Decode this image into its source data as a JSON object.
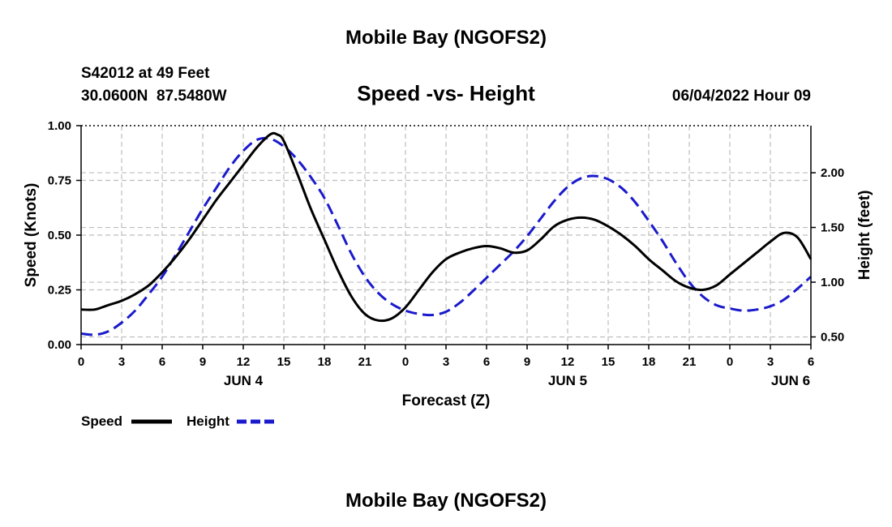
{
  "chart_data": {
    "type": "line",
    "title": "Mobile Bay (NGOFS2)",
    "subtitle": "Speed -vs- Height",
    "footer_title": "Mobile Bay (NGOFS2)",
    "station": "S42012 at 49 Feet",
    "coords": "30.0600N  87.5480W",
    "timestamp": "06/04/2022 Hour 09",
    "xlabel": "Forecast (Z)",
    "ylabel": "Speed (Knots)",
    "y2label": "Height (feet)",
    "xlim": [
      0,
      54
    ],
    "ylim": [
      0,
      1.0
    ],
    "y2lim": [
      0.43,
      2.43
    ],
    "grid": true,
    "legend_position": "bottom-left",
    "x_ticks": [
      {
        "x": 0,
        "label": "0"
      },
      {
        "x": 3,
        "label": "3"
      },
      {
        "x": 6,
        "label": "6"
      },
      {
        "x": 9,
        "label": "9"
      },
      {
        "x": 12,
        "label": "12"
      },
      {
        "x": 15,
        "label": "15"
      },
      {
        "x": 18,
        "label": "18"
      },
      {
        "x": 21,
        "label": "21"
      },
      {
        "x": 24,
        "label": "0"
      },
      {
        "x": 27,
        "label": "3"
      },
      {
        "x": 30,
        "label": "6"
      },
      {
        "x": 33,
        "label": "9"
      },
      {
        "x": 36,
        "label": "12"
      },
      {
        "x": 39,
        "label": "15"
      },
      {
        "x": 42,
        "label": "18"
      },
      {
        "x": 45,
        "label": "21"
      },
      {
        "x": 48,
        "label": "0"
      },
      {
        "x": 51,
        "label": "3"
      },
      {
        "x": 54,
        "label": "6"
      }
    ],
    "day_labels": [
      {
        "x": 12,
        "label": "JUN 4"
      },
      {
        "x": 36,
        "label": "JUN 5"
      },
      {
        "x": 52.5,
        "label": "JUN 6"
      }
    ],
    "y_ticks": [
      {
        "v": 0.0,
        "label": "0.00"
      },
      {
        "v": 0.25,
        "label": "0.25"
      },
      {
        "v": 0.5,
        "label": "0.50"
      },
      {
        "v": 0.75,
        "label": "0.75"
      },
      {
        "v": 1.0,
        "label": "1.00"
      }
    ],
    "y2_ticks": [
      {
        "v": 0.5,
        "label": "0.50"
      },
      {
        "v": 1.0,
        "label": "1.00"
      },
      {
        "v": 1.5,
        "label": "1.50"
      },
      {
        "v": 2.0,
        "label": "2.00"
      }
    ],
    "series": [
      {
        "name": "Speed",
        "axis": "left",
        "color": "#000000",
        "dash": "solid",
        "x": [
          0,
          1,
          2,
          3,
          4,
          5,
          6,
          7,
          8,
          9,
          10,
          11,
          12,
          13,
          14,
          14.5,
          15,
          16,
          17,
          18,
          19,
          20,
          21,
          22,
          23,
          24,
          25,
          26,
          27,
          28,
          29,
          30,
          31,
          32,
          33,
          34,
          35,
          36,
          37,
          38,
          39,
          40,
          41,
          42,
          43,
          44,
          45,
          46,
          47,
          48,
          49,
          50,
          51,
          52,
          53,
          54
        ],
        "y": [
          0.16,
          0.16,
          0.18,
          0.2,
          0.23,
          0.27,
          0.33,
          0.4,
          0.48,
          0.57,
          0.66,
          0.74,
          0.82,
          0.9,
          0.96,
          0.96,
          0.93,
          0.78,
          0.62,
          0.48,
          0.34,
          0.22,
          0.14,
          0.11,
          0.12,
          0.17,
          0.25,
          0.33,
          0.39,
          0.42,
          0.44,
          0.45,
          0.44,
          0.42,
          0.43,
          0.48,
          0.54,
          0.57,
          0.58,
          0.57,
          0.54,
          0.5,
          0.45,
          0.39,
          0.34,
          0.29,
          0.26,
          0.25,
          0.27,
          0.32,
          0.37,
          0.42,
          0.47,
          0.51,
          0.49,
          0.39
        ]
      },
      {
        "name": "Height",
        "axis": "right",
        "color": "#1a1acc",
        "dash": "dashed",
        "x": [
          0,
          1,
          2,
          3,
          4,
          5,
          6,
          7,
          8,
          9,
          10,
          11,
          12,
          13,
          14,
          15,
          16,
          17,
          18,
          19,
          20,
          21,
          22,
          23,
          24,
          25,
          26,
          27,
          28,
          29,
          30,
          31,
          32,
          33,
          34,
          35,
          36,
          37,
          38,
          39,
          40,
          41,
          42,
          43,
          44,
          45,
          46,
          47,
          48,
          49,
          50,
          51,
          52,
          53,
          54
        ],
        "y": [
          0.53,
          0.52,
          0.55,
          0.63,
          0.74,
          0.89,
          1.05,
          1.25,
          1.46,
          1.67,
          1.86,
          2.05,
          2.2,
          2.3,
          2.31,
          2.24,
          2.12,
          1.96,
          1.77,
          1.52,
          1.26,
          1.05,
          0.9,
          0.8,
          0.74,
          0.71,
          0.7,
          0.73,
          0.81,
          0.92,
          1.04,
          1.16,
          1.28,
          1.42,
          1.58,
          1.74,
          1.87,
          1.95,
          1.97,
          1.94,
          1.86,
          1.73,
          1.56,
          1.38,
          1.18,
          1.0,
          0.87,
          0.79,
          0.76,
          0.74,
          0.75,
          0.78,
          0.84,
          0.94,
          1.05
        ]
      }
    ]
  }
}
